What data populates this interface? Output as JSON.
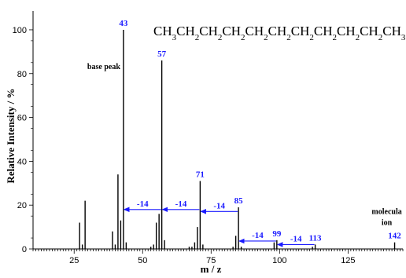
{
  "chart_data": {
    "type": "bar",
    "xlabel": "m / z",
    "ylabel": "Relative Intensity / %",
    "xlim": [
      10,
      145
    ],
    "ylim": [
      0,
      105
    ],
    "xticks": [
      25,
      50,
      75,
      100,
      125
    ],
    "yticks": [
      0,
      20,
      40,
      60,
      80,
      100
    ],
    "title": "CH3CH2CH2CH2CH2CH2CH2CH2CH2CH2CH3",
    "peaks": [
      {
        "mz": 27,
        "intensity": 12
      },
      {
        "mz": 28,
        "intensity": 2
      },
      {
        "mz": 29,
        "intensity": 22
      },
      {
        "mz": 39,
        "intensity": 8
      },
      {
        "mz": 40,
        "intensity": 2
      },
      {
        "mz": 41,
        "intensity": 34
      },
      {
        "mz": 42,
        "intensity": 13
      },
      {
        "mz": 43,
        "intensity": 100
      },
      {
        "mz": 44,
        "intensity": 3
      },
      {
        "mz": 53,
        "intensity": 1
      },
      {
        "mz": 54,
        "intensity": 2
      },
      {
        "mz": 55,
        "intensity": 12
      },
      {
        "mz": 56,
        "intensity": 16
      },
      {
        "mz": 57,
        "intensity": 86
      },
      {
        "mz": 58,
        "intensity": 4
      },
      {
        "mz": 67,
        "intensity": 1
      },
      {
        "mz": 68,
        "intensity": 1
      },
      {
        "mz": 69,
        "intensity": 3
      },
      {
        "mz": 70,
        "intensity": 10
      },
      {
        "mz": 71,
        "intensity": 31
      },
      {
        "mz": 72,
        "intensity": 2
      },
      {
        "mz": 83,
        "intensity": 1
      },
      {
        "mz": 84,
        "intensity": 6
      },
      {
        "mz": 85,
        "intensity": 19
      },
      {
        "mz": 86,
        "intensity": 1
      },
      {
        "mz": 98,
        "intensity": 3
      },
      {
        "mz": 99,
        "intensity": 4
      },
      {
        "mz": 112,
        "intensity": 1
      },
      {
        "mz": 113,
        "intensity": 2
      },
      {
        "mz": 142,
        "intensity": 3
      }
    ],
    "annotations": {
      "peak_labels": [
        {
          "mz": 43,
          "text": "43"
        },
        {
          "mz": 57,
          "text": "57"
        },
        {
          "mz": 71,
          "text": "71"
        },
        {
          "mz": 85,
          "text": "85"
        },
        {
          "mz": 99,
          "text": "99"
        },
        {
          "mz": 113,
          "text": "113"
        },
        {
          "mz": 142,
          "text": "142"
        }
      ],
      "base_peak_text": "base peak",
      "molecular_ion_text": [
        "molecula",
        "ion"
      ],
      "losses": [
        {
          "from": 57,
          "to": 43,
          "text": "-14"
        },
        {
          "from": 71,
          "to": 57,
          "text": "-14"
        },
        {
          "from": 85,
          "to": 71,
          "text": "-14"
        },
        {
          "from": 99,
          "to": 85,
          "text": "-14"
        },
        {
          "from": 113,
          "to": 99,
          "text": "-14"
        }
      ]
    },
    "colors": {
      "bars": "#000000",
      "labels": "#1a1aff",
      "arrows": "#1a1aff"
    }
  }
}
